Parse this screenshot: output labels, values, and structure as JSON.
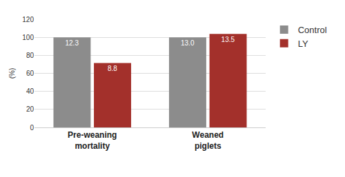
{
  "chart_data": {
    "type": "bar",
    "y_label": "(%)",
    "categories": [
      "Pre-weaning mortality",
      "Weaned piglets"
    ],
    "series": [
      {
        "name": "Control",
        "color": "#8c8c8c",
        "values": [
          100,
          100
        ],
        "bar_texts": [
          "12.3",
          "13.0"
        ]
      },
      {
        "name": "LY",
        "color": "#a3302b",
        "values": [
          71.5,
          103.8
        ],
        "bar_texts": [
          "8.8",
          "13.5"
        ]
      }
    ],
    "ylim": [
      0,
      120
    ],
    "yticks": [
      0,
      20,
      40,
      60,
      80,
      100,
      120
    ],
    "grid": true,
    "legend": "right"
  }
}
